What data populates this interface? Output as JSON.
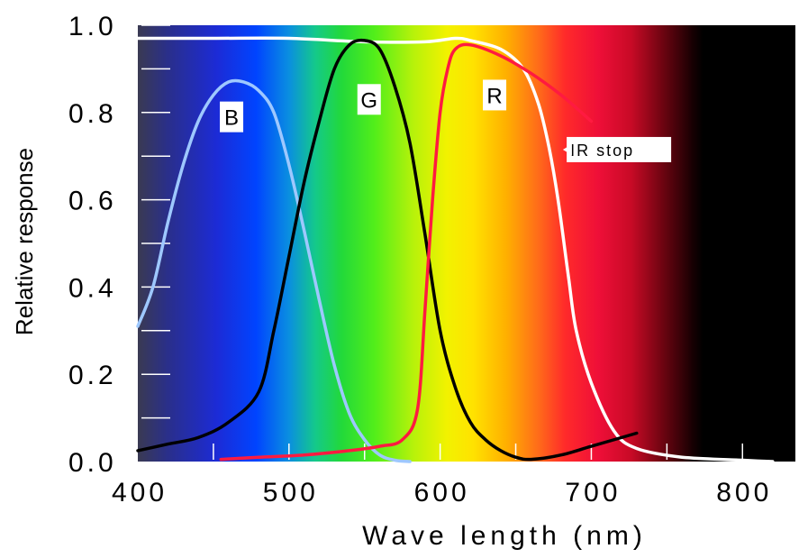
{
  "chart_data": {
    "type": "line",
    "title": "",
    "xlabel": "Wave length (nm)",
    "ylabel": "Relative response",
    "xlim": [
      400,
      835
    ],
    "ylim": [
      0,
      1.0
    ],
    "x_ticks": [
      400,
      500,
      600,
      700,
      800
    ],
    "x_tick_labels": [
      "400",
      "500",
      "600",
      "700",
      "800"
    ],
    "y_ticks": [
      0.0,
      0.2,
      0.4,
      0.6,
      0.8,
      1.0
    ],
    "y_tick_labels": [
      "0.0",
      "0.2",
      "0.4",
      "0.6",
      "0.8",
      "1.0"
    ],
    "background": "visible light spectrum (violet to red, black beyond ~750 nm)",
    "series": [
      {
        "name": "B",
        "color": "#9ec8ff",
        "points": [
          [
            400,
            0.31
          ],
          [
            410,
            0.4
          ],
          [
            420,
            0.55
          ],
          [
            430,
            0.68
          ],
          [
            440,
            0.78
          ],
          [
            450,
            0.84
          ],
          [
            460,
            0.87
          ],
          [
            470,
            0.87
          ],
          [
            480,
            0.85
          ],
          [
            490,
            0.8
          ],
          [
            500,
            0.68
          ],
          [
            510,
            0.53
          ],
          [
            520,
            0.37
          ],
          [
            530,
            0.22
          ],
          [
            540,
            0.11
          ],
          [
            550,
            0.05
          ],
          [
            560,
            0.015
          ],
          [
            570,
            0.003
          ],
          [
            580,
            0.0
          ]
        ]
      },
      {
        "name": "G",
        "color": "#000000",
        "points": [
          [
            400,
            0.025
          ],
          [
            420,
            0.04
          ],
          [
            440,
            0.055
          ],
          [
            460,
            0.09
          ],
          [
            480,
            0.16
          ],
          [
            490,
            0.3
          ],
          [
            500,
            0.47
          ],
          [
            510,
            0.64
          ],
          [
            520,
            0.78
          ],
          [
            530,
            0.9
          ],
          [
            540,
            0.955
          ],
          [
            550,
            0.965
          ],
          [
            560,
            0.945
          ],
          [
            570,
            0.86
          ],
          [
            580,
            0.73
          ],
          [
            590,
            0.52
          ],
          [
            600,
            0.3
          ],
          [
            610,
            0.17
          ],
          [
            620,
            0.09
          ],
          [
            630,
            0.05
          ],
          [
            640,
            0.025
          ],
          [
            650,
            0.01
          ],
          [
            660,
            0.005
          ],
          [
            680,
            0.015
          ],
          [
            700,
            0.035
          ],
          [
            730,
            0.065
          ]
        ]
      },
      {
        "name": "R",
        "color": "#ff1a40",
        "points": [
          [
            455,
            0.005
          ],
          [
            480,
            0.01
          ],
          [
            510,
            0.015
          ],
          [
            540,
            0.025
          ],
          [
            560,
            0.035
          ],
          [
            575,
            0.05
          ],
          [
            585,
            0.12
          ],
          [
            590,
            0.35
          ],
          [
            595,
            0.6
          ],
          [
            600,
            0.8
          ],
          [
            605,
            0.9
          ],
          [
            610,
            0.945
          ],
          [
            620,
            0.955
          ],
          [
            640,
            0.93
          ],
          [
            660,
            0.89
          ],
          [
            680,
            0.84
          ],
          [
            700,
            0.78
          ]
        ]
      },
      {
        "name": "IR stop",
        "color": "#ffffff",
        "points": [
          [
            400,
            0.97
          ],
          [
            450,
            0.97
          ],
          [
            500,
            0.97
          ],
          [
            550,
            0.962
          ],
          [
            590,
            0.962
          ],
          [
            610,
            0.97
          ],
          [
            620,
            0.965
          ],
          [
            640,
            0.945
          ],
          [
            655,
            0.9
          ],
          [
            665,
            0.82
          ],
          [
            672,
            0.72
          ],
          [
            678,
            0.6
          ],
          [
            685,
            0.42
          ],
          [
            690,
            0.3
          ],
          [
            700,
            0.18
          ],
          [
            715,
            0.07
          ],
          [
            730,
            0.03
          ],
          [
            760,
            0.01
          ],
          [
            800,
            0.003
          ],
          [
            820,
            0.0
          ]
        ]
      }
    ],
    "annotations": [
      {
        "text": "B",
        "x": 462,
        "y": 0.79
      },
      {
        "text": "G",
        "x": 553,
        "y": 0.83
      },
      {
        "text": "R",
        "x": 636,
        "y": 0.84
      },
      {
        "text": "IR stop",
        "x": 698,
        "y": 0.715,
        "arrow_to": [
          680,
          0.715
        ]
      }
    ],
    "grid": false,
    "legend": "none"
  }
}
